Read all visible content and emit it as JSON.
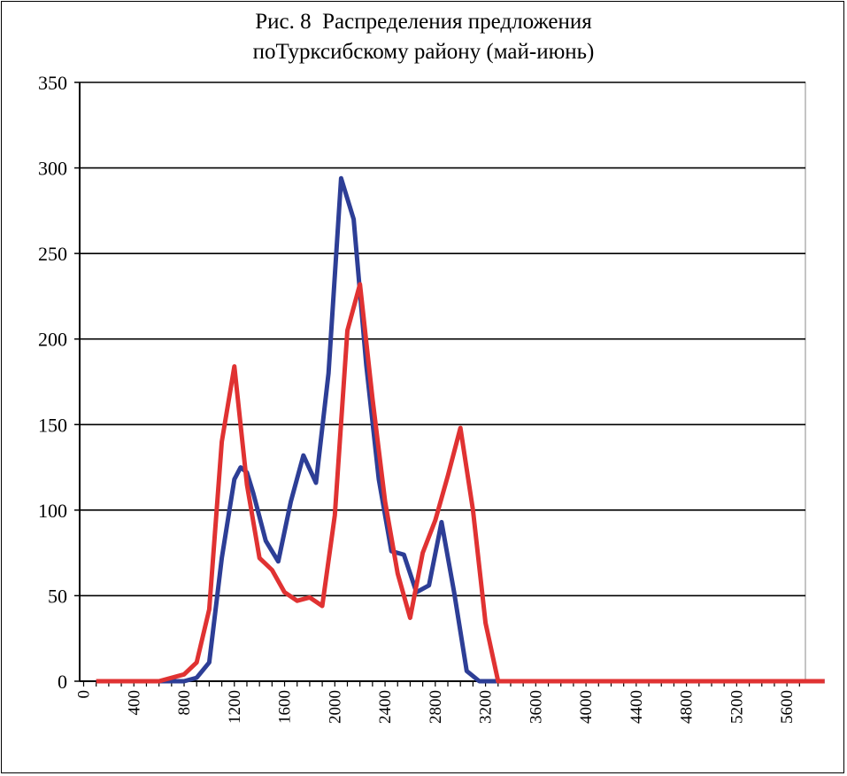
{
  "chart_data": {
    "type": "line",
    "title": "Рис. 8  Распределения предложения",
    "subtitle": "поТурксибскому району (май-июнь)",
    "xlabel": "",
    "ylabel": "",
    "ylim": [
      0,
      350
    ],
    "xlim": [
      0,
      5900
    ],
    "y_ticks": [
      0,
      50,
      100,
      150,
      200,
      250,
      300,
      350
    ],
    "x_tick_labels": [
      "0",
      "400",
      "800",
      "1200",
      "1600",
      "2000",
      "2400",
      "2800",
      "3200",
      "3600",
      "4000",
      "4400",
      "4800",
      "5200",
      "5600"
    ],
    "x_tick_values": [
      0,
      400,
      800,
      1200,
      1600,
      2000,
      2400,
      2800,
      3200,
      3600,
      4000,
      4400,
      4800,
      5200,
      5600
    ],
    "grid": "horizontal",
    "legend": "none",
    "series": [
      {
        "color": "#2d3e96",
        "points": [
          [
            100,
            0
          ],
          [
            200,
            0
          ],
          [
            300,
            0
          ],
          [
            400,
            0
          ],
          [
            500,
            0
          ],
          [
            600,
            0
          ],
          [
            700,
            0
          ],
          [
            800,
            0
          ],
          [
            900,
            2
          ],
          [
            1000,
            11
          ],
          [
            1100,
            72
          ],
          [
            1200,
            118
          ],
          [
            1250,
            125
          ],
          [
            1300,
            122
          ],
          [
            1350,
            110
          ],
          [
            1450,
            82
          ],
          [
            1550,
            70
          ],
          [
            1650,
            105
          ],
          [
            1750,
            132
          ],
          [
            1850,
            116
          ],
          [
            1950,
            180
          ],
          [
            2050,
            294
          ],
          [
            2150,
            270
          ],
          [
            2250,
            185
          ],
          [
            2350,
            118
          ],
          [
            2450,
            76
          ],
          [
            2550,
            74
          ],
          [
            2650,
            52
          ],
          [
            2750,
            56
          ],
          [
            2850,
            93
          ],
          [
            2950,
            52
          ],
          [
            3050,
            6
          ],
          [
            3150,
            0
          ],
          [
            3250,
            0
          ],
          [
            3400,
            0
          ],
          [
            5900,
            0
          ]
        ]
      },
      {
        "color": "#e03232",
        "points": [
          [
            100,
            0
          ],
          [
            200,
            0
          ],
          [
            300,
            0
          ],
          [
            400,
            0
          ],
          [
            500,
            0
          ],
          [
            600,
            0
          ],
          [
            700,
            2
          ],
          [
            800,
            4
          ],
          [
            900,
            11
          ],
          [
            1000,
            42
          ],
          [
            1100,
            140
          ],
          [
            1200,
            184
          ],
          [
            1300,
            115
          ],
          [
            1400,
            72
          ],
          [
            1500,
            65
          ],
          [
            1600,
            52
          ],
          [
            1700,
            47
          ],
          [
            1800,
            49
          ],
          [
            1900,
            44
          ],
          [
            2000,
            97
          ],
          [
            2100,
            205
          ],
          [
            2200,
            232
          ],
          [
            2300,
            165
          ],
          [
            2400,
            105
          ],
          [
            2500,
            63
          ],
          [
            2600,
            37
          ],
          [
            2700,
            75
          ],
          [
            2800,
            94
          ],
          [
            2900,
            120
          ],
          [
            3000,
            148
          ],
          [
            3100,
            100
          ],
          [
            3200,
            34
          ],
          [
            3300,
            0
          ],
          [
            3400,
            0
          ],
          [
            5900,
            0
          ]
        ]
      }
    ]
  }
}
